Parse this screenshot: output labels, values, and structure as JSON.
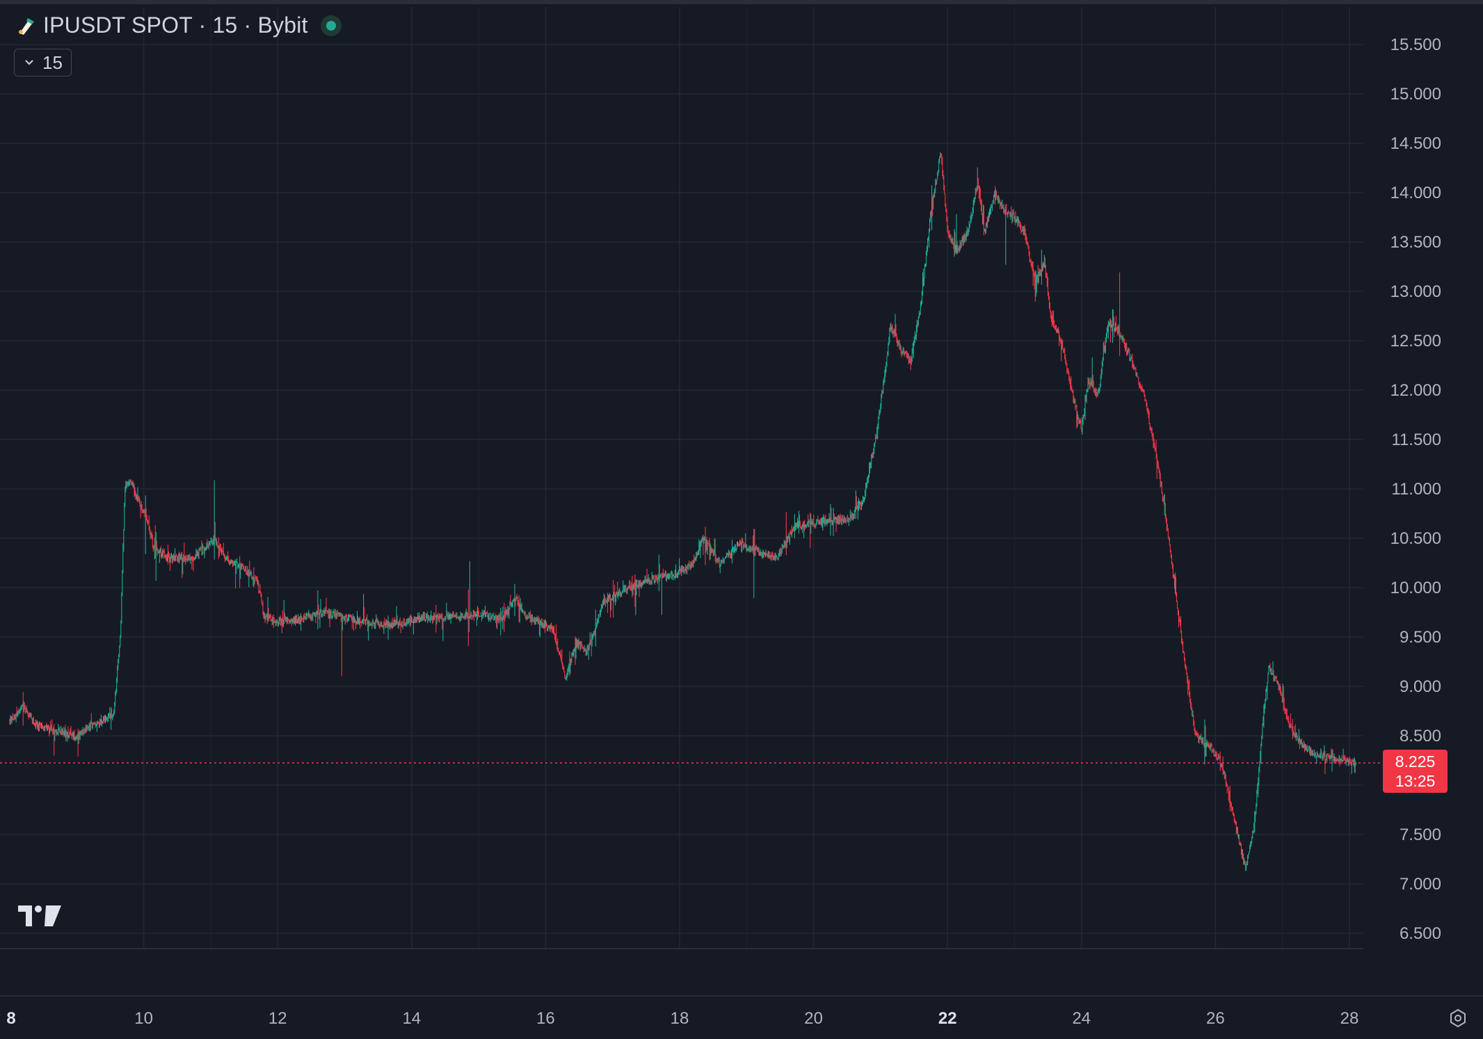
{
  "header": {
    "title": "IPUSDT SPOT · 15 · Bybit",
    "symbol_icon": "ip-token-icon",
    "live_indicator_color": "#22ab94"
  },
  "interval": {
    "label": "15",
    "icon": "chevron-down-icon"
  },
  "price_tag": {
    "price": "8.225",
    "countdown": "13:25",
    "color": "#f23645"
  },
  "colors": {
    "up": "#22ab94",
    "down": "#f23645",
    "background": "#161a25",
    "grid": "#242832",
    "text": "#b2b5be"
  },
  "y_axis": {
    "ticks": [
      "15.500",
      "15.000",
      "14.500",
      "14.000",
      "13.500",
      "13.000",
      "12.500",
      "12.000",
      "11.500",
      "11.000",
      "10.500",
      "10.000",
      "9.500",
      "9.000",
      "8.500",
      "7.500",
      "7.000",
      "6.500"
    ]
  },
  "x_axis": {
    "ticks": [
      {
        "label": "8",
        "day": 8,
        "bold": true
      },
      {
        "label": "10",
        "day": 10,
        "bold": false
      },
      {
        "label": "12",
        "day": 12,
        "bold": false
      },
      {
        "label": "14",
        "day": 14,
        "bold": false
      },
      {
        "label": "16",
        "day": 16,
        "bold": false
      },
      {
        "label": "18",
        "day": 18,
        "bold": false
      },
      {
        "label": "20",
        "day": 20,
        "bold": false
      },
      {
        "label": "22",
        "day": 22,
        "bold": true
      },
      {
        "label": "24",
        "day": 24,
        "bold": false
      },
      {
        "label": "26",
        "day": 26,
        "bold": false
      },
      {
        "label": "28",
        "day": 28,
        "bold": false
      }
    ]
  },
  "branding": {
    "logo": "tradingview-logo"
  },
  "settings": {
    "icon": "gear-icon"
  },
  "chart_data": {
    "type": "candlestick",
    "title": "IPUSDT SPOT · 15 · Bybit",
    "interval": "15",
    "x_unit": "day of month",
    "ylim": [
      6.3,
      15.8
    ],
    "xlim": [
      8,
      28.5
    ],
    "last_price": 8.225,
    "grid": true,
    "series": [
      {
        "name": "IPUSDT",
        "points": [
          [
            8.0,
            8.65
          ],
          [
            8.2,
            8.8
          ],
          [
            8.4,
            8.6
          ],
          [
            8.7,
            8.55
          ],
          [
            9.0,
            8.5
          ],
          [
            9.2,
            8.6
          ],
          [
            9.4,
            8.65
          ],
          [
            9.55,
            8.7
          ],
          [
            9.65,
            9.5
          ],
          [
            9.72,
            11.0
          ],
          [
            9.8,
            11.1
          ],
          [
            9.9,
            10.9
          ],
          [
            10.05,
            10.7
          ],
          [
            10.15,
            10.4
          ],
          [
            10.4,
            10.3
          ],
          [
            10.7,
            10.3
          ],
          [
            10.9,
            10.4
          ],
          [
            11.05,
            10.5
          ],
          [
            11.2,
            10.3
          ],
          [
            11.5,
            10.2
          ],
          [
            11.7,
            10.05
          ],
          [
            11.8,
            9.7
          ],
          [
            12.1,
            9.65
          ],
          [
            12.4,
            9.7
          ],
          [
            12.7,
            9.75
          ],
          [
            13.0,
            9.7
          ],
          [
            13.3,
            9.65
          ],
          [
            13.6,
            9.62
          ],
          [
            13.9,
            9.65
          ],
          [
            14.2,
            9.7
          ],
          [
            14.5,
            9.7
          ],
          [
            14.8,
            9.72
          ],
          [
            15.1,
            9.72
          ],
          [
            15.35,
            9.68
          ],
          [
            15.55,
            9.9
          ],
          [
            15.7,
            9.7
          ],
          [
            15.9,
            9.65
          ],
          [
            16.1,
            9.6
          ],
          [
            16.22,
            9.3
          ],
          [
            16.3,
            9.05
          ],
          [
            16.45,
            9.45
          ],
          [
            16.6,
            9.35
          ],
          [
            16.75,
            9.6
          ],
          [
            16.85,
            9.85
          ],
          [
            17.1,
            9.95
          ],
          [
            17.4,
            10.05
          ],
          [
            17.7,
            10.1
          ],
          [
            18.0,
            10.15
          ],
          [
            18.2,
            10.25
          ],
          [
            18.35,
            10.5
          ],
          [
            18.6,
            10.25
          ],
          [
            18.9,
            10.45
          ],
          [
            19.2,
            10.35
          ],
          [
            19.45,
            10.3
          ],
          [
            19.7,
            10.6
          ],
          [
            20.0,
            10.65
          ],
          [
            20.3,
            10.7
          ],
          [
            20.55,
            10.7
          ],
          [
            20.75,
            10.9
          ],
          [
            20.95,
            11.6
          ],
          [
            21.05,
            12.1
          ],
          [
            21.15,
            12.65
          ],
          [
            21.3,
            12.4
          ],
          [
            21.45,
            12.3
          ],
          [
            21.6,
            12.85
          ],
          [
            21.75,
            13.8
          ],
          [
            21.9,
            14.4
          ],
          [
            22.0,
            13.6
          ],
          [
            22.12,
            13.4
          ],
          [
            22.3,
            13.6
          ],
          [
            22.45,
            14.1
          ],
          [
            22.55,
            13.6
          ],
          [
            22.7,
            14.0
          ],
          [
            22.85,
            13.8
          ],
          [
            23.0,
            13.75
          ],
          [
            23.15,
            13.6
          ],
          [
            23.3,
            13.1
          ],
          [
            23.45,
            13.3
          ],
          [
            23.55,
            12.7
          ],
          [
            23.7,
            12.5
          ],
          [
            23.85,
            12.0
          ],
          [
            24.0,
            11.6
          ],
          [
            24.1,
            12.1
          ],
          [
            24.25,
            11.95
          ],
          [
            24.4,
            12.7
          ],
          [
            24.55,
            12.6
          ],
          [
            24.75,
            12.3
          ],
          [
            24.95,
            11.9
          ],
          [
            25.15,
            11.2
          ],
          [
            25.3,
            10.5
          ],
          [
            25.45,
            9.7
          ],
          [
            25.55,
            9.2
          ],
          [
            25.7,
            8.5
          ],
          [
            25.9,
            8.4
          ],
          [
            26.1,
            8.2
          ],
          [
            26.3,
            7.6
          ],
          [
            26.45,
            7.15
          ],
          [
            26.58,
            7.6
          ],
          [
            26.7,
            8.6
          ],
          [
            26.8,
            9.2
          ],
          [
            26.95,
            9.0
          ],
          [
            27.1,
            8.6
          ],
          [
            27.3,
            8.4
          ],
          [
            27.5,
            8.3
          ],
          [
            27.7,
            8.28
          ],
          [
            27.9,
            8.25
          ],
          [
            28.1,
            8.23
          ]
        ]
      }
    ]
  }
}
